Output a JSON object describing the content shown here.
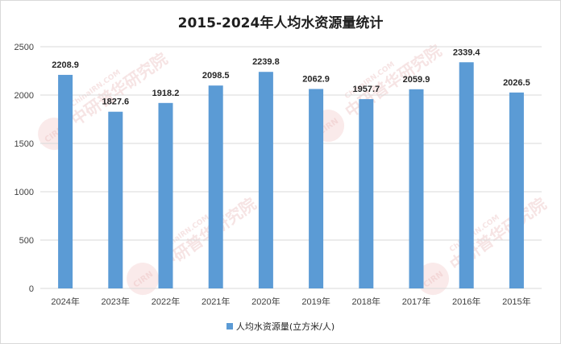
{
  "watermark_text": "中研普华研究院",
  "watermark_url": "ChinaIRN.COM",
  "watermark_logo": "CIRN",
  "colors": {
    "bar": "#5b9bd5",
    "grid": "#d9d9d9",
    "text": "#404040"
  },
  "chart_data": {
    "type": "bar",
    "title": "2015-2024年人均水资源量统计",
    "categories": [
      "2024年",
      "2023年",
      "2022年",
      "2021年",
      "2020年",
      "2019年",
      "2018年",
      "2017年",
      "2016年",
      "2015年"
    ],
    "series": [
      {
        "name": "人均水资源量(立方米/人)",
        "values": [
          2208.9,
          1827.6,
          1918.2,
          2098.5,
          2239.8,
          2062.9,
          1957.7,
          2059.9,
          2339.4,
          2026.5
        ]
      }
    ],
    "value_labels": [
      "2208.9",
      "1827.6",
      "1918.2",
      "2098.5",
      "2239.8",
      "2062.9",
      "1957.7",
      "2059.9",
      "2339.4",
      "2026.5"
    ],
    "ylim": [
      0,
      2500
    ],
    "yticks": [
      0,
      500,
      1000,
      1500,
      2000,
      2500
    ],
    "grid": true,
    "legend_position": "bottom"
  }
}
